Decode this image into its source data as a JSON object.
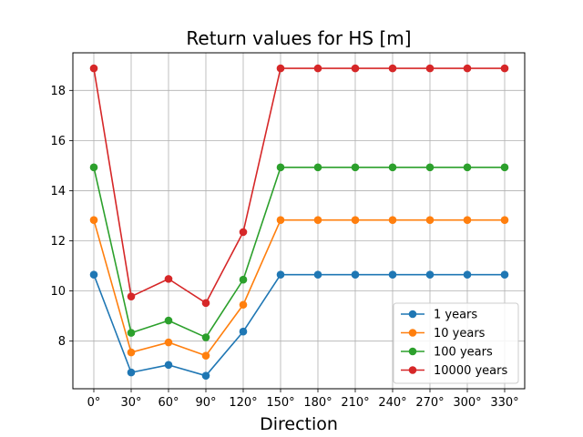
{
  "chart_data": {
    "type": "line",
    "title": "Return values for HS [m]",
    "xlabel": "Direction",
    "ylabel": "",
    "categories": [
      "0°",
      "30°",
      "60°",
      "90°",
      "120°",
      "150°",
      "180°",
      "210°",
      "240°",
      "270°",
      "300°",
      "330°"
    ],
    "ylim": [
      6.1,
      19.5
    ],
    "yticks": [
      8,
      10,
      12,
      14,
      16,
      18
    ],
    "grid": true,
    "legend_position": "lower-right",
    "series": [
      {
        "name": "1 years",
        "color": "#1f77b4",
        "values": [
          10.65,
          6.75,
          7.05,
          6.62,
          8.38,
          10.65,
          10.65,
          10.65,
          10.65,
          10.65,
          10.65,
          10.65
        ]
      },
      {
        "name": "10 years",
        "color": "#ff7f0e",
        "values": [
          12.83,
          7.55,
          7.95,
          7.42,
          9.45,
          12.83,
          12.83,
          12.83,
          12.83,
          12.83,
          12.83,
          12.83
        ]
      },
      {
        "name": "100 years",
        "color": "#2ca02c",
        "values": [
          14.93,
          8.33,
          8.82,
          8.15,
          10.45,
          14.93,
          14.93,
          14.93,
          14.93,
          14.93,
          14.93,
          14.93
        ]
      },
      {
        "name": "10000 years",
        "color": "#d62728",
        "values": [
          18.88,
          9.78,
          10.48,
          9.52,
          12.35,
          18.88,
          18.88,
          18.88,
          18.88,
          18.88,
          18.88,
          18.88
        ]
      }
    ]
  }
}
